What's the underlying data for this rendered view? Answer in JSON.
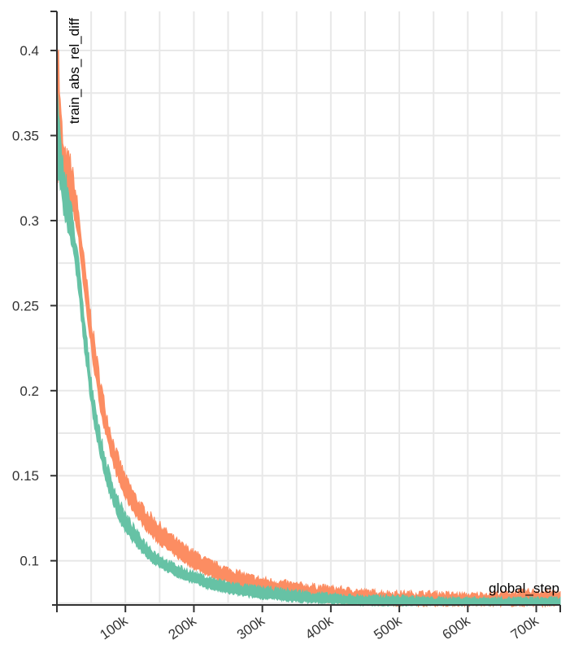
{
  "chart_data": {
    "type": "area",
    "xlabel": "global_step",
    "ylabel": "train_abs_rel_diff",
    "xlim": [
      0,
      735000
    ],
    "ylim": [
      0.074,
      0.423
    ],
    "x_ticks": [
      {
        "value": 100000,
        "label": "100k"
      },
      {
        "value": 200000,
        "label": "200k"
      },
      {
        "value": 300000,
        "label": "300k"
      },
      {
        "value": 400000,
        "label": "400k"
      },
      {
        "value": 500000,
        "label": "500k"
      },
      {
        "value": 600000,
        "label": "600k"
      },
      {
        "value": 700000,
        "label": "700k"
      }
    ],
    "y_ticks": [
      {
        "value": 0.1,
        "label": "0.1"
      },
      {
        "value": 0.15,
        "label": "0.15"
      },
      {
        "value": 0.2,
        "label": "0.2"
      },
      {
        "value": 0.25,
        "label": "0.25"
      },
      {
        "value": 0.3,
        "label": "0.3"
      },
      {
        "value": 0.35,
        "label": "0.35"
      },
      {
        "value": 0.4,
        "label": "0.4"
      }
    ],
    "grid": true,
    "series": [
      {
        "color": "#fc8d62",
        "x": [
          0,
          5000,
          10000,
          20000,
          30000,
          40000,
          50000,
          60000,
          70000,
          80000,
          90000,
          100000,
          120000,
          140000,
          160000,
          180000,
          200000,
          220000,
          250000,
          280000,
          300000,
          350000,
          400000,
          450000,
          500000,
          550000,
          600000,
          650000,
          700000,
          735000
        ],
        "lower": [
          0.33,
          0.325,
          0.318,
          0.31,
          0.295,
          0.258,
          0.225,
          0.198,
          0.176,
          0.16,
          0.147,
          0.137,
          0.124,
          0.114,
          0.107,
          0.101,
          0.096,
          0.092,
          0.087,
          0.083,
          0.081,
          0.078,
          0.076,
          0.075,
          0.074,
          0.074,
          0.074,
          0.074,
          0.074,
          0.074
        ],
        "upper": [
          0.42,
          0.365,
          0.34,
          0.335,
          0.31,
          0.275,
          0.242,
          0.214,
          0.191,
          0.173,
          0.16,
          0.149,
          0.134,
          0.125,
          0.117,
          0.11,
          0.105,
          0.1,
          0.095,
          0.091,
          0.089,
          0.086,
          0.084,
          0.082,
          0.081,
          0.081,
          0.08,
          0.081,
          0.082,
          0.081
        ]
      },
      {
        "color": "#66c2a5",
        "x": [
          0,
          5000,
          10000,
          20000,
          30000,
          40000,
          50000,
          60000,
          70000,
          80000,
          90000,
          100000,
          120000,
          140000,
          160000,
          180000,
          200000,
          220000,
          250000,
          280000,
          300000,
          350000,
          400000,
          450000,
          500000,
          550000,
          600000,
          650000,
          700000,
          735000
        ],
        "lower": [
          0.33,
          0.32,
          0.305,
          0.29,
          0.265,
          0.225,
          0.192,
          0.168,
          0.149,
          0.136,
          0.125,
          0.117,
          0.107,
          0.099,
          0.094,
          0.09,
          0.087,
          0.084,
          0.081,
          0.079,
          0.078,
          0.076,
          0.075,
          0.074,
          0.074,
          0.074,
          0.074,
          0.074,
          0.074,
          0.074
        ],
        "upper": [
          0.375,
          0.345,
          0.33,
          0.31,
          0.282,
          0.242,
          0.207,
          0.181,
          0.161,
          0.147,
          0.136,
          0.127,
          0.115,
          0.106,
          0.1,
          0.096,
          0.093,
          0.09,
          0.087,
          0.085,
          0.084,
          0.082,
          0.08,
          0.079,
          0.079,
          0.078,
          0.078,
          0.078,
          0.078,
          0.078
        ]
      }
    ]
  }
}
